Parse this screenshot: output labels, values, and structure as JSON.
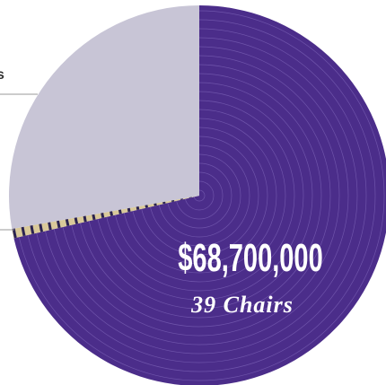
{
  "chart_data": {
    "type": "pie",
    "values": [
      71.4,
      0.8,
      27.8
    ],
    "colors": [
      "#4b2d8a",
      "#d9c99a",
      "#c8c5d6"
    ],
    "annotations": [
      "$68,700,000",
      "39 Chairs",
      "s"
    ]
  }
}
